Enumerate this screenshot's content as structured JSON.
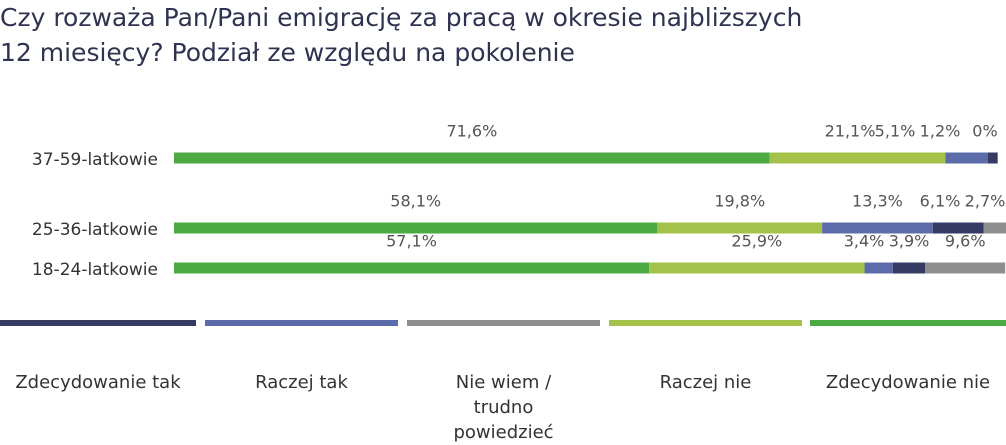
{
  "chart_data": {
    "type": "stacked-bar-horizontal",
    "title": [
      "Czy rozważa Pan/Pani emigrację za pracą w okresie najbliższych",
      "12 miesięcy? Podział ze względu na pokolenie"
    ],
    "categories": [
      "37-59-latkowie",
      "25-36-latkowie",
      "18-24-latkowie"
    ],
    "xlim": [
      0,
      100
    ],
    "series": [
      {
        "name": "Zdecydowanie tak",
        "color": "#353b63",
        "values": [
          1.2,
          6.1,
          3.9
        ],
        "value_labels": [
          "1,2%",
          "6,1%",
          "3,9%"
        ]
      },
      {
        "name": "Raczej tak",
        "color": "#5c6cab",
        "values": [
          5.1,
          13.3,
          3.4
        ],
        "value_labels": [
          "5,1%",
          "13,3%",
          "3,4%"
        ]
      },
      {
        "name": "Nie wiem / trudno powiedzieć",
        "color": "#8e8e8e",
        "values": [
          0,
          2.7,
          9.6
        ],
        "value_labels": [
          "0%",
          "2,7%",
          "9,6%"
        ]
      },
      {
        "name": "Raczej nie",
        "color": "#a4c24a",
        "values": [
          21.1,
          19.8,
          25.9
        ],
        "value_labels": [
          "21,1%",
          "19,8%",
          "25,9%"
        ]
      },
      {
        "name": "Zdecydowanie nie",
        "color": "#4caa43",
        "values": [
          71.6,
          58.1,
          57.1
        ],
        "value_labels": [
          "71,6%",
          "58,1%",
          "57,1%"
        ]
      }
    ]
  }
}
